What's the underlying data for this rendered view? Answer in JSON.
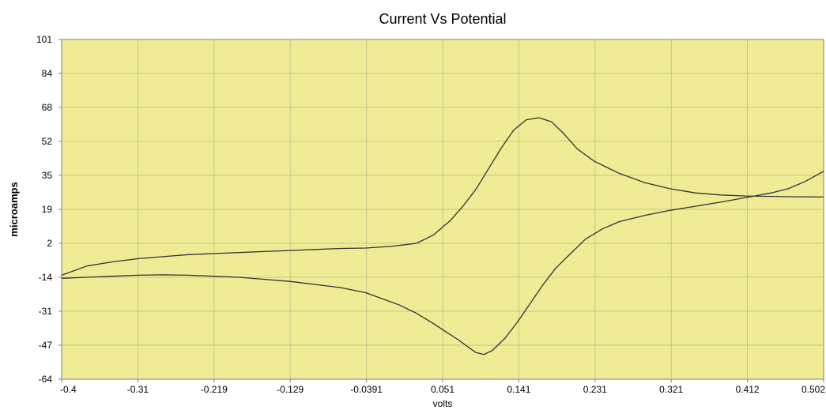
{
  "chart_data": {
    "type": "line",
    "title": "Current Vs Potential",
    "xlabel": "volts",
    "ylabel": "microamps",
    "xlim": [
      -0.4,
      0.502
    ],
    "ylim": [
      -64,
      101
    ],
    "x_ticks": [
      "-0.4",
      "-0.31",
      "-0.219",
      "-0.129",
      "-0.0391",
      "0.051",
      "0.141",
      "0.231",
      "0.321",
      "0.412",
      "0.502"
    ],
    "y_ticks": [
      "101",
      "84",
      "68",
      "52",
      "35",
      "19",
      "2",
      "-14",
      "-31",
      "-47",
      "-64"
    ],
    "grid": true,
    "legend": "none",
    "colors": {
      "plot_bg": "#F0EC96",
      "grid": "#C8C486",
      "line": "#333333",
      "axis": "#808080"
    },
    "series": [
      {
        "x": [
          -0.4,
          -0.37,
          -0.34,
          -0.31,
          -0.28,
          -0.25,
          -0.22,
          -0.19,
          -0.16,
          -0.13,
          -0.1,
          -0.07,
          -0.04,
          -0.01,
          0.02,
          0.04,
          0.06,
          0.075,
          0.09,
          0.105,
          0.12,
          0.135,
          0.15,
          0.165,
          0.18,
          0.195,
          0.21,
          0.23,
          0.26,
          0.29,
          0.32,
          0.35,
          0.38,
          0.41,
          0.44,
          0.47,
          0.502
        ],
        "y": [
          -13.5,
          -9,
          -7,
          -5.5,
          -4.5,
          -3.5,
          -3,
          -2.5,
          -2,
          -1.5,
          -1,
          -0.5,
          -0.3,
          0.5,
          2,
          6,
          13,
          20,
          28,
          38,
          48,
          57,
          62,
          63,
          61,
          55,
          48,
          42,
          36,
          31.5,
          28.5,
          26.5,
          25.5,
          25,
          24.8,
          24.6,
          24.5
        ]
      },
      {
        "x": [
          0.502,
          0.48,
          0.46,
          0.44,
          0.42,
          0.4,
          0.38,
          0.35,
          0.32,
          0.29,
          0.26,
          0.24,
          0.22,
          0.2,
          0.185,
          0.17,
          0.155,
          0.14,
          0.125,
          0.11,
          0.1,
          0.09,
          0.08,
          0.07,
          0.055,
          0.04,
          0.02,
          0,
          -0.02,
          -0.04,
          -0.07,
          -0.1,
          -0.13,
          -0.16,
          -0.19,
          -0.22,
          -0.25,
          -0.28,
          -0.31,
          -0.34,
          -0.37,
          -0.4
        ],
        "y": [
          37,
          32,
          28.5,
          26.5,
          25,
          23.5,
          22,
          20,
          18,
          15.5,
          12.5,
          9,
          4,
          -4,
          -10,
          -18,
          -27,
          -36,
          -44,
          -50,
          -52,
          -51,
          -48,
          -45,
          -41,
          -37,
          -32,
          -28,
          -25,
          -22,
          -19.5,
          -18,
          -16.5,
          -15.5,
          -14.5,
          -14,
          -13.5,
          -13.3,
          -13.5,
          -14,
          -14.5,
          -15
        ]
      }
    ]
  }
}
